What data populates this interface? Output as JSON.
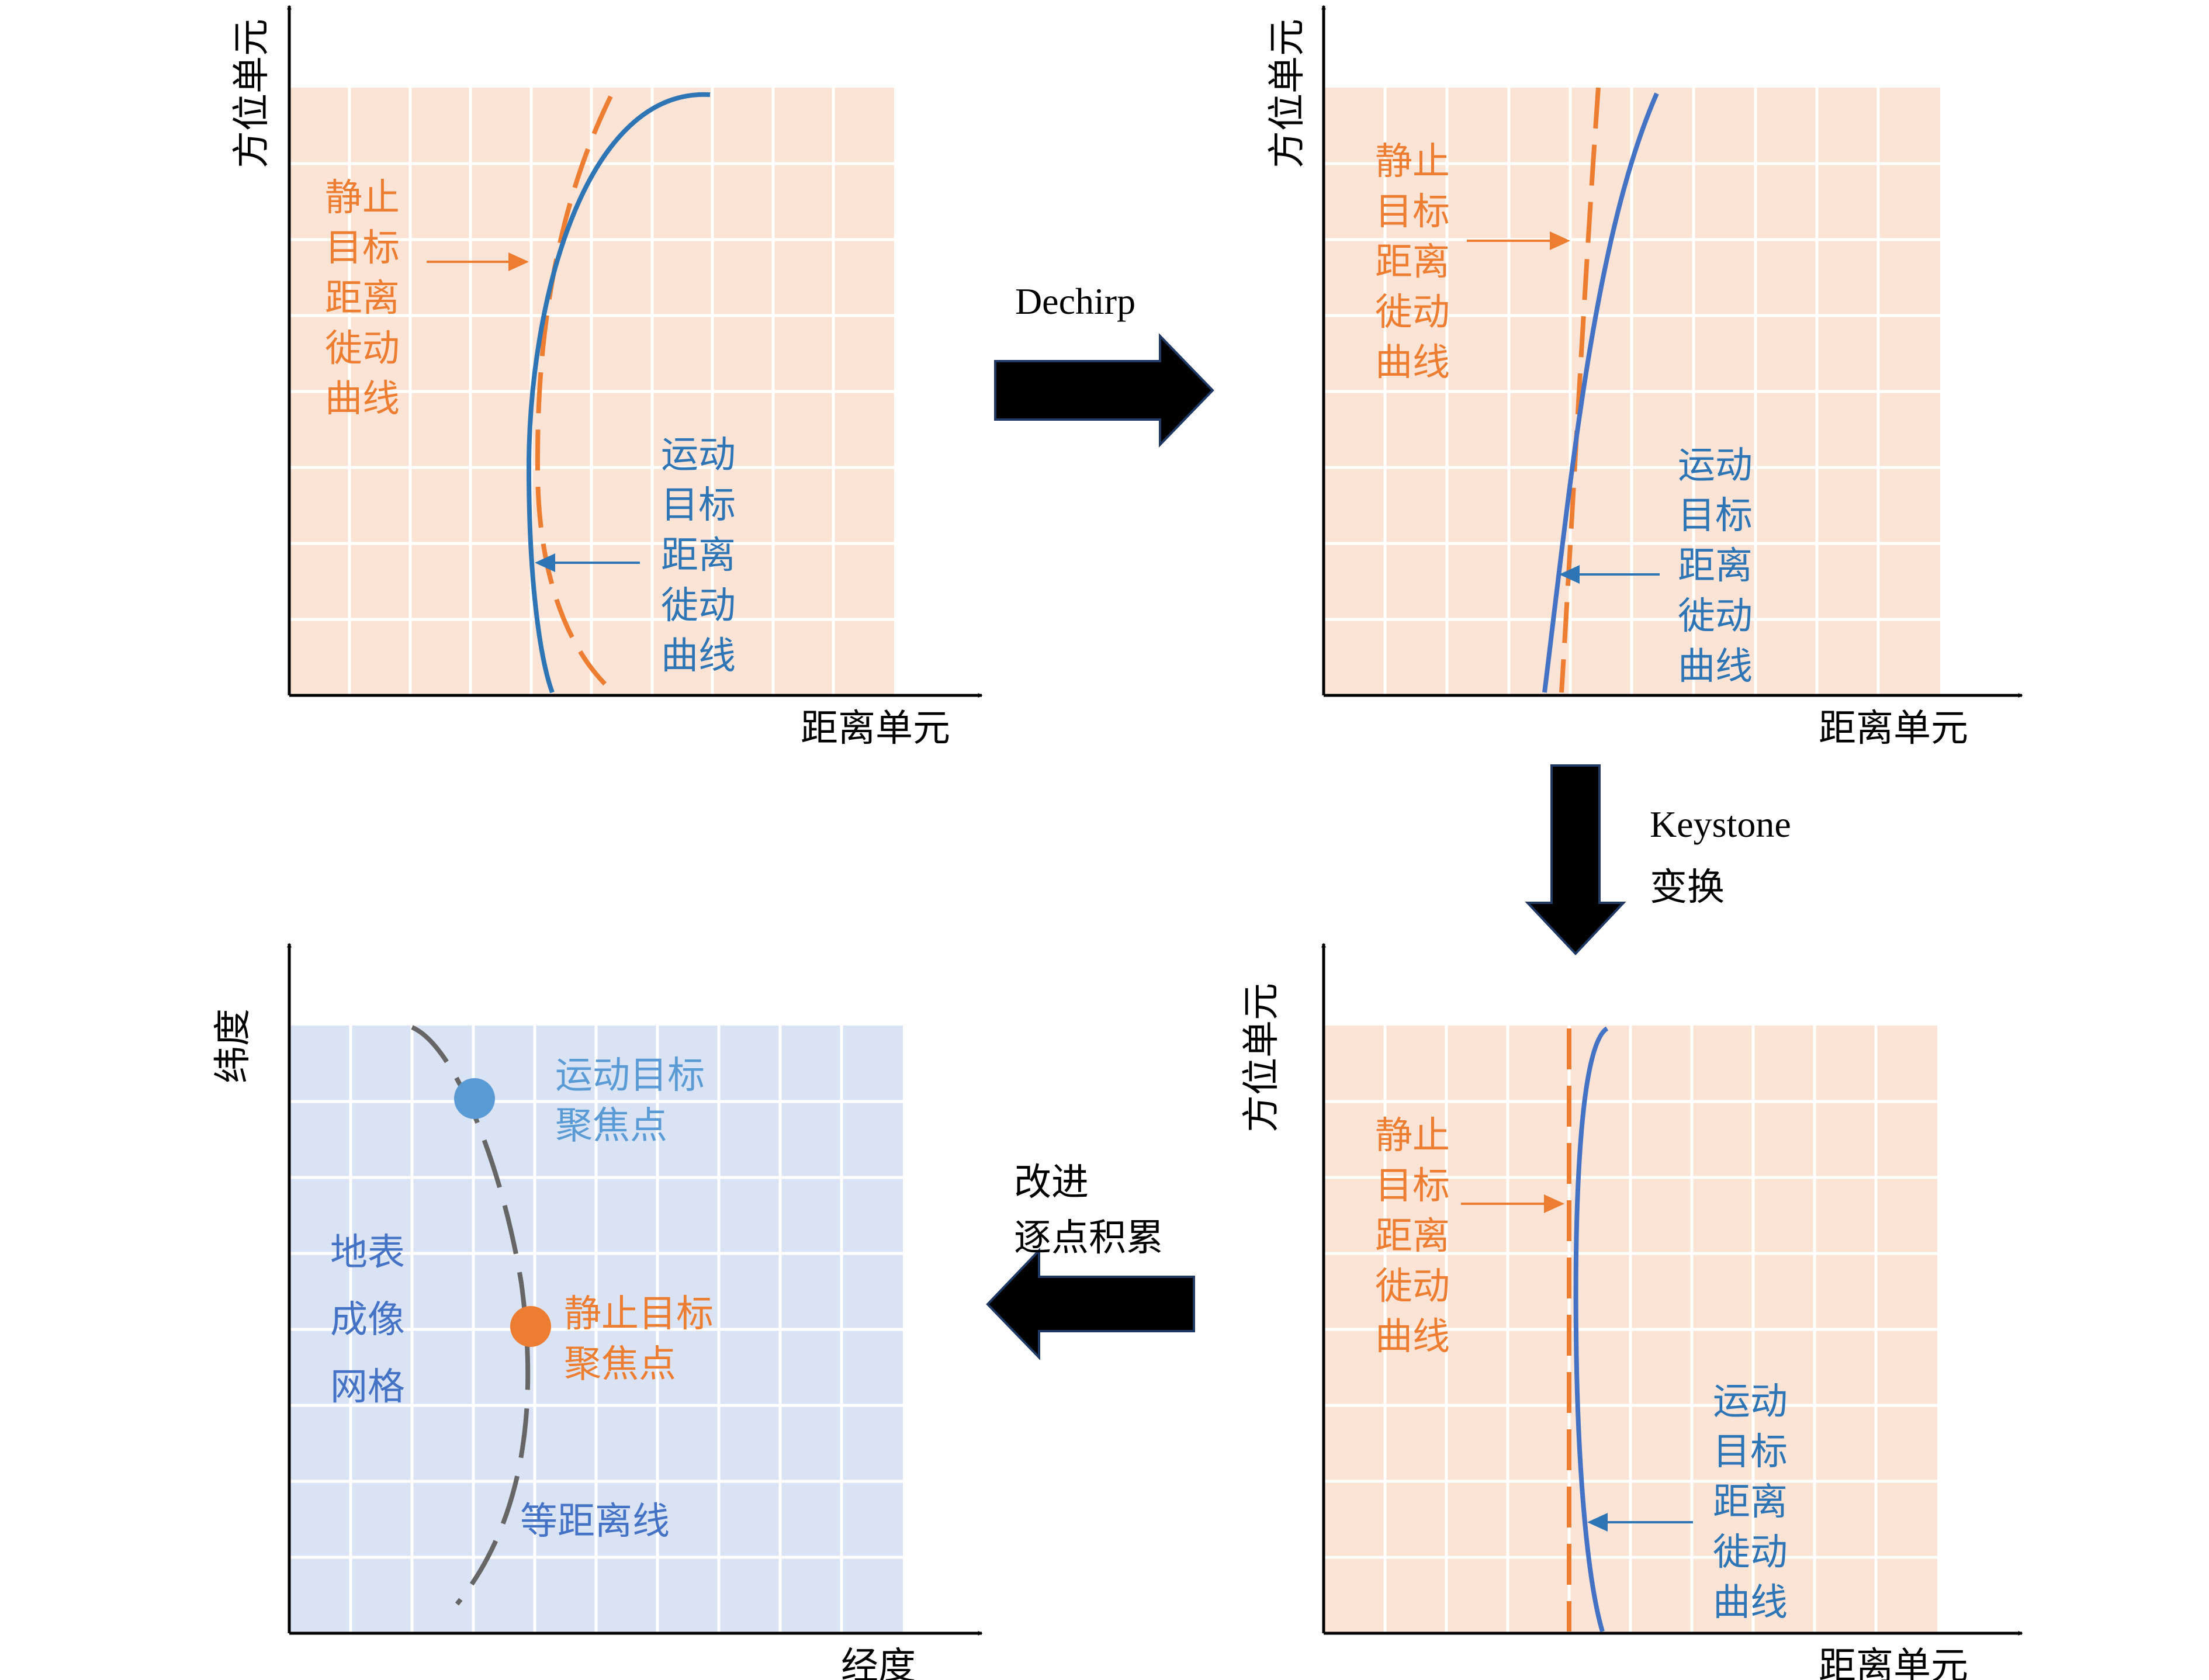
{
  "colors": {
    "panel_range": "#fbe4d5",
    "panel_geo": "#dae3f3",
    "grid": "#ffffff",
    "axis": "#000000",
    "stationary": "#ed7d31",
    "moving_top": "#2e75b6",
    "moving_bottom": "#4472c4",
    "focus_moving": "#5b9bd5",
    "iso_range": "#666666",
    "arrow_fill": "#000000",
    "arrow_edge": "#1f3864"
  },
  "panel1": {
    "y_axis": "方位单元",
    "x_axis": "距离单元",
    "stationary": [
      "静止",
      "目标",
      "距离",
      "徙动",
      "曲线"
    ],
    "moving": [
      "运动",
      "目标",
      "距离",
      "徙动",
      "曲线"
    ]
  },
  "panel2": {
    "y_axis": "方位单元",
    "x_axis": "距离单元",
    "stationary": [
      "静止",
      "目标",
      "距离",
      "徙动",
      "曲线"
    ],
    "moving": [
      "运动",
      "目标",
      "距离",
      "徙动",
      "曲线"
    ]
  },
  "panel3": {
    "y_axis": "方位单元",
    "x_axis": "距离单元",
    "stationary": [
      "静止",
      "目标",
      "距离",
      "徙动",
      "曲线"
    ],
    "moving": [
      "运动",
      "目标",
      "距离",
      "徙动",
      "曲线"
    ]
  },
  "panel4": {
    "y_axis": "纬度",
    "x_axis": "经度",
    "moving_focus": [
      "运动目标",
      "聚焦点"
    ],
    "stationary_focus": [
      "静止目标",
      "聚焦点"
    ],
    "grid_label": [
      "地表",
      "成像",
      "网格"
    ],
    "iso_range": "等距离线"
  },
  "steps": {
    "dechirp": "Dechirp",
    "keystone": [
      "Keystone",
      "变换"
    ],
    "accumulation": [
      "改进",
      "逐点积累"
    ]
  }
}
